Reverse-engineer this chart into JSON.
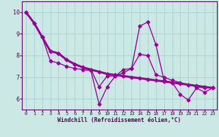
{
  "xlabel": "Windchill (Refroidissement éolien,°C)",
  "background_color": "#cce8e4",
  "grid_color": "#aad4d0",
  "line_color": "#990099",
  "xlim": [
    -0.5,
    23.5
  ],
  "ylim": [
    5.5,
    10.5
  ],
  "yticks": [
    6,
    7,
    8,
    9,
    10
  ],
  "xticks": [
    0,
    1,
    2,
    3,
    4,
    5,
    6,
    7,
    8,
    9,
    10,
    11,
    12,
    13,
    14,
    15,
    16,
    17,
    18,
    19,
    20,
    21,
    22,
    23
  ],
  "line_wavy_x": [
    0,
    1,
    2,
    3,
    4,
    5,
    6,
    7,
    8,
    9,
    10,
    11,
    12,
    13,
    14,
    15,
    16,
    17,
    18,
    19,
    20,
    21,
    22,
    23
  ],
  "line_wavy_y": [
    10.0,
    9.5,
    8.85,
    7.75,
    7.65,
    7.5,
    7.4,
    7.35,
    7.3,
    5.75,
    6.55,
    7.05,
    7.35,
    7.4,
    9.35,
    9.55,
    8.5,
    6.85,
    6.75,
    6.2,
    5.95,
    6.5,
    6.3,
    6.5
  ],
  "line_smooth_x": [
    0,
    1,
    2,
    3,
    4,
    5,
    6,
    7,
    8,
    9,
    10,
    11,
    12,
    13,
    14,
    15,
    16,
    17,
    18,
    19,
    20,
    21,
    22,
    23
  ],
  "line_smooth_y": [
    10.0,
    9.5,
    8.85,
    8.2,
    8.1,
    7.8,
    7.6,
    7.45,
    7.35,
    7.25,
    7.15,
    7.1,
    7.05,
    7.0,
    6.95,
    6.9,
    6.85,
    6.8,
    6.75,
    6.7,
    6.65,
    6.6,
    6.55,
    6.5
  ],
  "line_mid_x": [
    2,
    3,
    4,
    5,
    6,
    7,
    8,
    9,
    10,
    11,
    12,
    13,
    14,
    15,
    16,
    17,
    18,
    19,
    20,
    21,
    22,
    23
  ],
  "line_mid_y": [
    8.85,
    8.2,
    8.1,
    7.8,
    7.6,
    7.45,
    7.35,
    6.55,
    7.05,
    7.05,
    7.2,
    7.4,
    8.05,
    8.0,
    7.1,
    7.0,
    6.85,
    6.75,
    6.65,
    6.55,
    6.5,
    6.5
  ]
}
